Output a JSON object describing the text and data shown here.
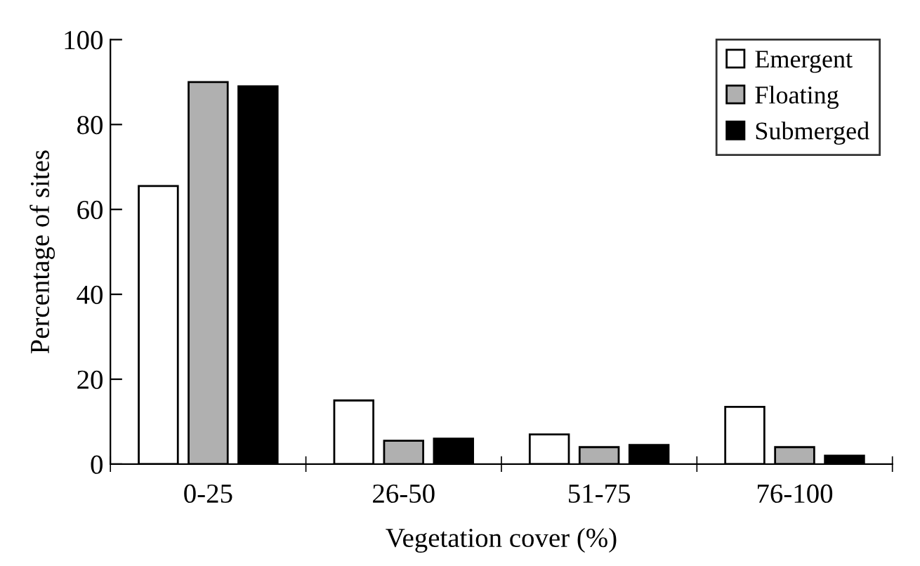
{
  "chart_data": {
    "type": "bar",
    "xlabel": "Vegetation cover (%)",
    "ylabel": "Percentage of sites",
    "categories": [
      "0-25",
      "26-50",
      "51-75",
      "76-100"
    ],
    "series": [
      {
        "name": "Emergent",
        "color": "#ffffff",
        "values": [
          65.5,
          15,
          7,
          13.5
        ]
      },
      {
        "name": "Floating",
        "color": "#b0b0b0",
        "values": [
          90,
          5.5,
          4,
          4
        ]
      },
      {
        "name": "Submerged",
        "color": "#000000",
        "values": [
          89,
          6,
          4.5,
          2
        ]
      }
    ],
    "ylim": [
      0,
      100
    ],
    "yticks": [
      0,
      20,
      40,
      60,
      80,
      100
    ],
    "grid": false,
    "legend": "top right"
  }
}
